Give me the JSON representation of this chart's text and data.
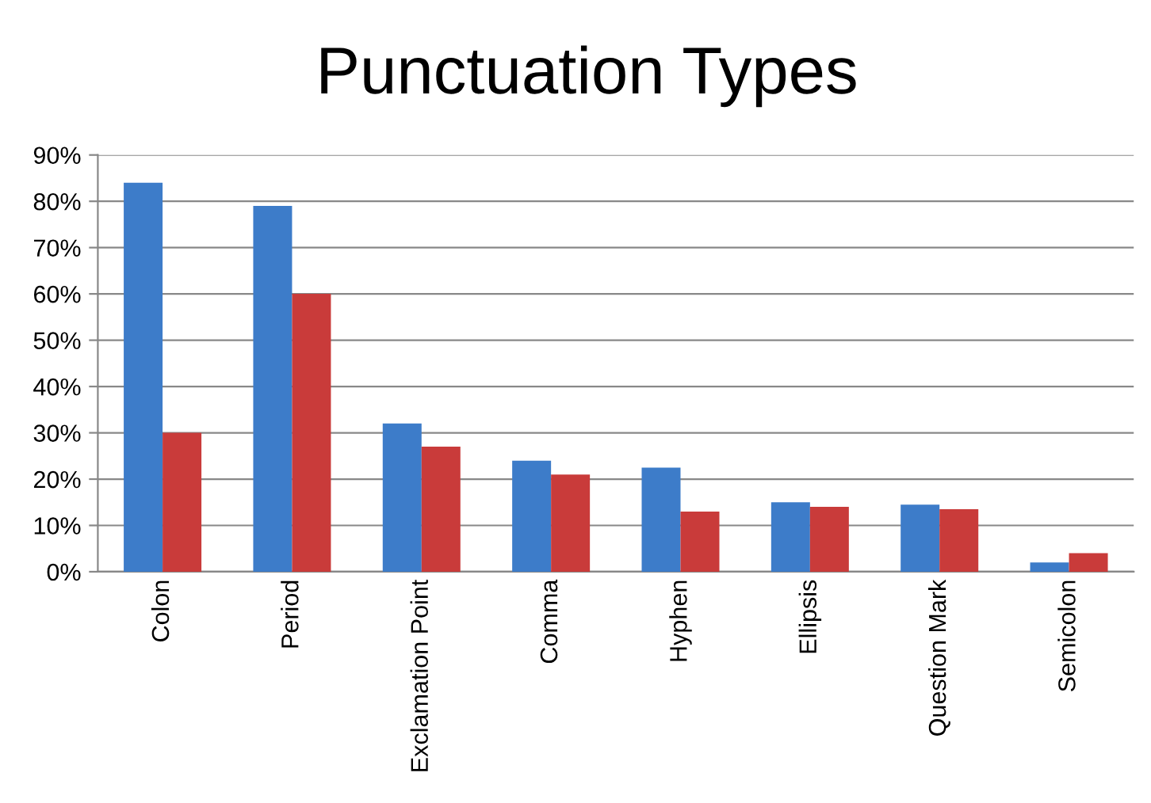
{
  "chart_data": {
    "type": "bar",
    "title": "Punctuation Types",
    "categories": [
      "Colon",
      "Period",
      "Exclamation Point",
      "Comma",
      "Hyphen",
      "Ellipsis",
      "Question Mark",
      "Semicolon"
    ],
    "series": [
      {
        "color": "#3d7cc9",
        "values": [
          84,
          79,
          32,
          24,
          22.5,
          15,
          14.5,
          2
        ]
      },
      {
        "color": "#c93b3a",
        "values": [
          30,
          60,
          27,
          21,
          13,
          14,
          13.5,
          4
        ]
      }
    ],
    "ylim": [
      0,
      90
    ],
    "yticks": [
      {
        "value": 0,
        "label": "0%"
      },
      {
        "value": 10,
        "label": "10%"
      },
      {
        "value": 20,
        "label": "20%"
      },
      {
        "value": 30,
        "label": "30%"
      },
      {
        "value": 40,
        "label": "40%"
      },
      {
        "value": 50,
        "label": "50%"
      },
      {
        "value": 60,
        "label": "60%"
      },
      {
        "value": 70,
        "label": "70%"
      },
      {
        "value": 80,
        "label": "80%"
      },
      {
        "value": 90,
        "label": "90%"
      }
    ],
    "grid": "y"
  }
}
